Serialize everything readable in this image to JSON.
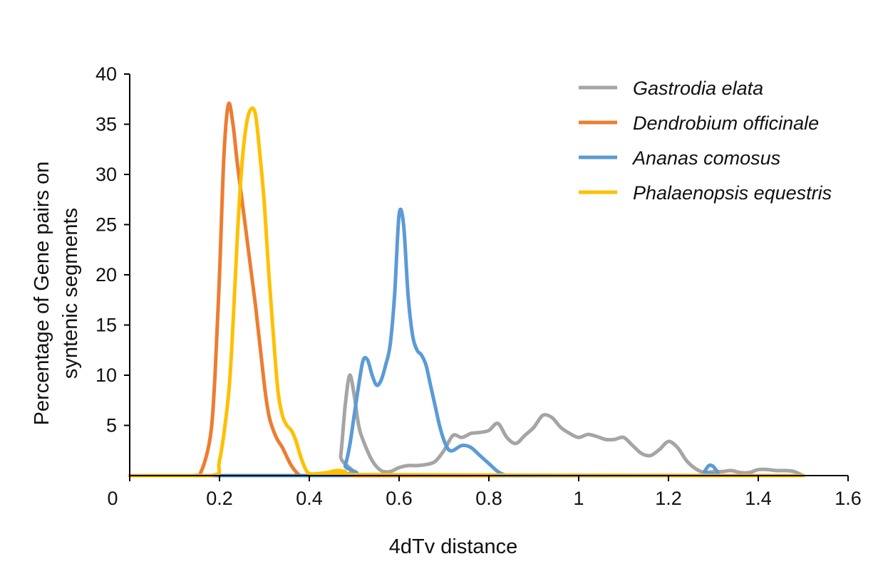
{
  "chart_data": {
    "type": "line",
    "title": "",
    "xlabel": "4dTv distance",
    "ylabel": [
      "Percentage of Gene pairs on",
      "syntenic segments"
    ],
    "xlim": [
      0,
      1.6
    ],
    "ylim": [
      0,
      40
    ],
    "xticks": [
      0,
      0.2,
      0.4,
      0.6,
      0.8,
      1,
      1.2,
      1.4,
      1.6
    ],
    "xtick_labels": [
      "0",
      "0.2",
      "0.4",
      "0.6",
      "0.8",
      "1",
      "1.2",
      "1.4",
      "1.6"
    ],
    "yticks": [
      5,
      10,
      15,
      20,
      25,
      30,
      35,
      40
    ],
    "ytick_labels": [
      "5",
      "10",
      "15",
      "20",
      "25",
      "30",
      "35",
      "40"
    ],
    "grid": false,
    "legend_position": "top-right",
    "series": [
      {
        "name": "Gastrodia elata",
        "color": "#a5a5a5",
        "x": [
          0,
          0.46,
          0.47,
          0.48,
          0.49,
          0.5,
          0.51,
          0.52,
          0.54,
          0.56,
          0.58,
          0.6,
          0.62,
          0.64,
          0.66,
          0.68,
          0.7,
          0.72,
          0.74,
          0.76,
          0.78,
          0.8,
          0.82,
          0.84,
          0.86,
          0.88,
          0.9,
          0.92,
          0.94,
          0.96,
          0.98,
          1.0,
          1.02,
          1.04,
          1.06,
          1.08,
          1.1,
          1.12,
          1.14,
          1.16,
          1.18,
          1.2,
          1.22,
          1.24,
          1.26,
          1.28,
          1.3,
          1.32,
          1.34,
          1.36,
          1.38,
          1.4,
          1.42,
          1.44,
          1.46,
          1.48,
          1.5
        ],
        "y": [
          0,
          0,
          2.0,
          7.0,
          10.0,
          8.0,
          5.0,
          3.5,
          1.5,
          0.5,
          0.4,
          0.8,
          1.0,
          1.0,
          1.1,
          1.4,
          2.5,
          4.0,
          3.8,
          4.2,
          4.3,
          4.5,
          5.2,
          3.8,
          3.2,
          4.0,
          4.8,
          6.0,
          5.8,
          4.8,
          4.2,
          3.8,
          4.1,
          3.9,
          3.6,
          3.6,
          3.8,
          3.0,
          2.2,
          2.0,
          2.6,
          3.4,
          2.8,
          1.5,
          0.7,
          0.3,
          0.4,
          0.4,
          0.5,
          0.3,
          0.3,
          0.6,
          0.6,
          0.5,
          0.5,
          0.4,
          0.0
        ]
      },
      {
        "name": "Dendrobium officinale",
        "color": "#ed7d31",
        "x": [
          0,
          0.14,
          0.16,
          0.18,
          0.19,
          0.2,
          0.21,
          0.22,
          0.23,
          0.24,
          0.26,
          0.28,
          0.3,
          0.31,
          0.32,
          0.33,
          0.34,
          0.36,
          0.38,
          0.4,
          0.45,
          0.5,
          1.5
        ],
        "y": [
          0,
          0,
          0.5,
          4,
          10,
          20,
          32,
          37,
          35,
          31,
          24,
          17,
          9,
          6,
          4.5,
          3.5,
          2.8,
          1,
          0,
          0,
          0,
          0,
          0
        ]
      },
      {
        "name": "Ananas comosus",
        "color": "#5b9bd5",
        "x": [
          0,
          0.47,
          0.48,
          0.49,
          0.5,
          0.51,
          0.52,
          0.53,
          0.54,
          0.55,
          0.56,
          0.57,
          0.58,
          0.59,
          0.6,
          0.61,
          0.62,
          0.63,
          0.64,
          0.65,
          0.66,
          0.67,
          0.68,
          0.69,
          0.7,
          0.71,
          0.72,
          0.74,
          0.76,
          0.78,
          0.8,
          0.82,
          0.84,
          0.86,
          1.27,
          1.28,
          1.29,
          1.3,
          1.31,
          1.32,
          1.5
        ],
        "y": [
          0,
          0,
          1,
          3,
          6,
          9,
          11.5,
          11.5,
          10,
          9,
          9.5,
          11,
          13,
          18,
          26,
          25,
          18,
          14,
          12.5,
          12,
          11,
          9,
          7,
          5,
          3.5,
          2.6,
          2.5,
          3.0,
          2.8,
          2.0,
          1.2,
          0.4,
          0,
          0,
          0,
          0.4,
          1.0,
          0.9,
          0.3,
          0,
          0
        ]
      },
      {
        "name": "Phalaenopsis equestris",
        "color": "#ffc000",
        "x": [
          0,
          0.18,
          0.2,
          0.22,
          0.23,
          0.24,
          0.25,
          0.26,
          0.27,
          0.28,
          0.29,
          0.3,
          0.31,
          0.32,
          0.33,
          0.34,
          0.35,
          0.36,
          0.37,
          0.38,
          0.39,
          0.4,
          0.42,
          0.44,
          0.46,
          0.48,
          0.5,
          1.5
        ],
        "y": [
          0,
          0,
          1.5,
          8,
          15,
          24,
          31,
          35,
          36.5,
          36,
          32,
          27,
          20,
          14,
          8.5,
          6,
          5,
          4.5,
          3.5,
          2.0,
          0.8,
          0.2,
          0.2,
          0.3,
          0.5,
          0.4,
          0.1,
          0
        ]
      }
    ]
  }
}
